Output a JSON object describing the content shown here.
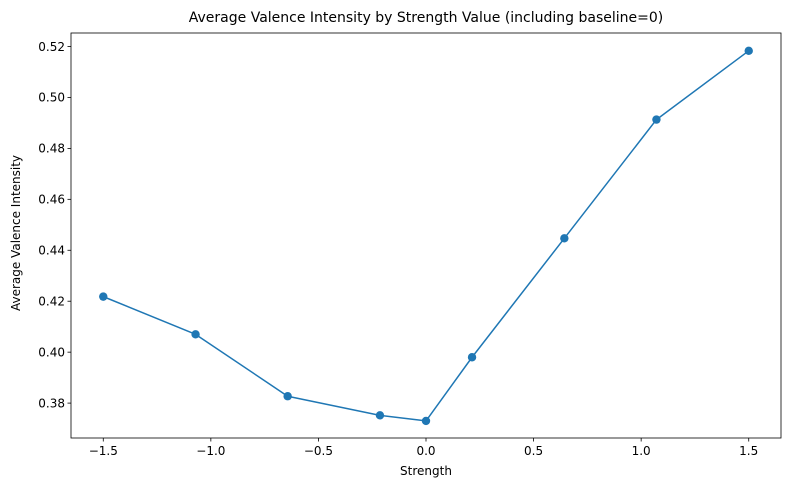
{
  "chart_data": {
    "type": "line",
    "title": "Average Valence Intensity by Strength Value (including baseline=0)",
    "xlabel": "Strength",
    "ylabel": "Average Valence Intensity",
    "xlim": [
      -1.65,
      1.65
    ],
    "ylim": [
      0.3663,
      0.5253
    ],
    "xticks": [
      -1.5,
      -1.0,
      -0.5,
      0.0,
      0.5,
      1.0,
      1.5
    ],
    "xtick_labels": [
      "−1.5",
      "−1.0",
      "−0.5",
      "0.0",
      "0.5",
      "1.0",
      "1.5"
    ],
    "yticks": [
      0.38,
      0.4,
      0.42,
      0.44,
      0.46,
      0.48,
      0.5,
      0.52
    ],
    "ytick_labels": [
      "0.38",
      "0.40",
      "0.42",
      "0.44",
      "0.46",
      "0.48",
      "0.50",
      "0.52"
    ],
    "grid": false,
    "series": [
      {
        "color": "#1f77b4",
        "marker": "circle",
        "x": [
          -1.5,
          -1.071,
          -0.643,
          -0.214,
          0.0,
          0.214,
          0.643,
          1.071,
          1.5
        ],
        "y": [
          0.4218,
          0.407,
          0.3827,
          0.3752,
          0.373,
          0.398,
          0.4447,
          0.4913,
          0.5183
        ]
      }
    ]
  }
}
